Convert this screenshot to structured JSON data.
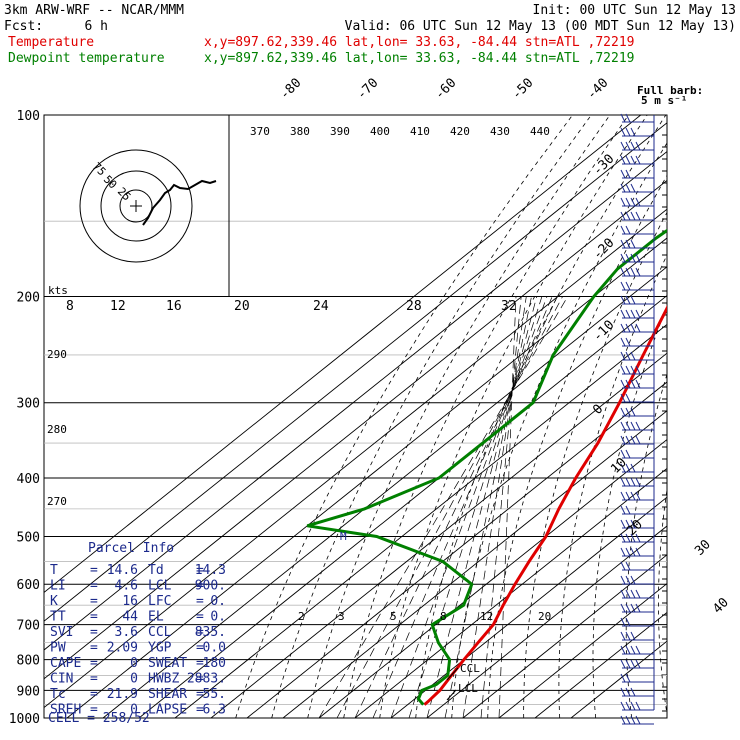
{
  "header": {
    "model": "3km ARW-WRF -- NCAR/MMM",
    "init": "Init: 00 UTC Sun 12 May 13",
    "fcst_label": "Fcst:",
    "fcst_value": "6 h",
    "valid": "Valid: 06 UTC Sun 12 May 13 (00 MDT Sun 12 May 13)",
    "temp_label": "Temperature",
    "dew_label": "Dewpoint temperature",
    "temp_info": "x,y=897.62,339.46   lat,lon= 33.63, -84.44  stn=ATL ,72219",
    "dew_info": "x,y=897.62,339.46   lat,lon= 33.63, -84.44  stn=ATL ,72219",
    "barb_note_1": "Full barb:",
    "barb_note_2": "5 m s⁻¹",
    "colors": {
      "temp": "#e00000",
      "dew": "#008000"
    }
  },
  "chart_data": {
    "type": "line",
    "xlabel": "",
    "ylabel": "",
    "pressure_ticks": [
      100,
      200,
      300,
      400,
      500,
      600,
      700,
      800,
      900,
      1000
    ],
    "pressure_range": [
      1000,
      100
    ],
    "skew_temp_labels": [
      "-80",
      "-70",
      "-60",
      "-50",
      "-40",
      "-30",
      "-20",
      "-10",
      "0",
      "10",
      "20",
      "30",
      "40"
    ],
    "potential_temp_labels": [
      "370",
      "380",
      "390",
      "400",
      "410",
      "420",
      "430",
      "440"
    ],
    "mixing_ratio_labels": [
      "2",
      "3",
      "5",
      "8",
      "12",
      "20"
    ],
    "mixing_ratio_upper": [
      "8",
      "12",
      "16",
      "20",
      "24",
      "28",
      "32"
    ],
    "theta_e_labels": [
      "290",
      "280",
      "270"
    ],
    "ccl_label": "CCL",
    "lcl_label": "LCL",
    "m_label": "M",
    "series": [
      {
        "name": "Temperature",
        "color": "#e00000",
        "points": [
          [
            100,
            -46
          ],
          [
            120,
            -52
          ],
          [
            140,
            -57
          ],
          [
            160,
            -60
          ],
          [
            180,
            -61
          ],
          [
            200,
            -58
          ],
          [
            250,
            -46
          ],
          [
            300,
            -36
          ],
          [
            350,
            -28
          ],
          [
            400,
            -22
          ],
          [
            450,
            -16
          ],
          [
            500,
            -10
          ],
          [
            550,
            -6
          ],
          [
            600,
            -2
          ],
          [
            650,
            2
          ],
          [
            700,
            6
          ],
          [
            750,
            8
          ],
          [
            800,
            10
          ],
          [
            850,
            12
          ],
          [
            900,
            14
          ],
          [
            940,
            14.6
          ],
          [
            950,
            14.6
          ]
        ]
      },
      {
        "name": "Dewpoint temperature",
        "color": "#008000",
        "points": [
          [
            100,
            -79
          ],
          [
            120,
            -80
          ],
          [
            140,
            -81
          ],
          [
            160,
            -83
          ],
          [
            180,
            -83
          ],
          [
            200,
            -80
          ],
          [
            250,
            -71
          ],
          [
            300,
            -60
          ],
          [
            350,
            -60
          ],
          [
            400,
            -60
          ],
          [
            450,
            -70
          ],
          [
            480,
            -80
          ],
          [
            500,
            -57
          ],
          [
            550,
            -30
          ],
          [
            600,
            -14
          ],
          [
            650,
            -9
          ],
          [
            700,
            -11
          ],
          [
            750,
            -3
          ],
          [
            800,
            6
          ],
          [
            850,
            11
          ],
          [
            880,
            11
          ],
          [
            900,
            9
          ],
          [
            930,
            11
          ],
          [
            950,
            14.3
          ]
        ]
      }
    ]
  },
  "hodograph": {
    "units": "kts",
    "ring_labels": [
      "75",
      "50",
      "25"
    ]
  },
  "parcel_info": {
    "title": "Parcel Info",
    "rows": [
      {
        "l1": "T",
        "v1": "14.6",
        "l2": "Td",
        "v2": "14.3"
      },
      {
        "l1": "LI",
        "v1": "4.6",
        "l2": "LCL",
        "v2": "900."
      },
      {
        "l1": "K",
        "v1": "16",
        "l2": "LFC",
        "v2": "0."
      },
      {
        "l1": "TT",
        "v1": "44",
        "l2": "EL",
        "v2": "0."
      },
      {
        "l1": "SVI",
        "v1": "3.6",
        "l2": "CCL",
        "v2": "835."
      },
      {
        "l1": "PW",
        "v1": "2.09",
        "l2": "YGP",
        "v2": "0.0"
      },
      {
        "l1": "CAPE",
        "v1": "0",
        "l2": "SWEAT",
        "v2": "180"
      },
      {
        "l1": "CIN",
        "v1": "0",
        "l2": "HWBZ",
        "v2": "2883."
      },
      {
        "l1": "Tc",
        "v1": "21.9",
        "l2": "SHEAR",
        "v2": "55."
      },
      {
        "l1": "SREH",
        "v1": "0",
        "l2": "LAPSE",
        "v2": "6.3"
      }
    ],
    "cell": "CELL = 258/52"
  }
}
